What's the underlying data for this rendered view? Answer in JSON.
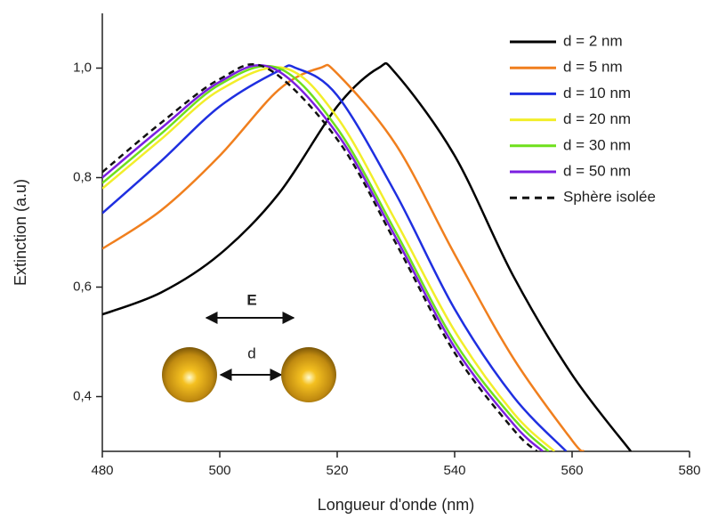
{
  "chart_data": {
    "type": "line",
    "x_label": "Longueur d'onde (nm)",
    "y_label": "Extinction (a.u)",
    "xlim": [
      480,
      580
    ],
    "ylim": [
      0.3,
      1.1
    ],
    "xticks": [
      480,
      500,
      520,
      540,
      560,
      580
    ],
    "yticks": [
      {
        "value": 0.4,
        "label": "0,4"
      },
      {
        "value": 0.6,
        "label": "0,6"
      },
      {
        "value": 0.8,
        "label": "0,8"
      },
      {
        "value": 1.0,
        "label": "1,0"
      }
    ],
    "legend": "upper right",
    "annotations": [
      "E",
      "d"
    ],
    "series": [
      {
        "name": "d = 2 nm",
        "color": "#000000",
        "dash": false,
        "x": [
          480,
          490,
          500,
          510,
          520,
          527,
          530,
          540,
          550,
          560,
          570
        ],
        "values": [
          0.55,
          0.59,
          0.66,
          0.77,
          0.93,
          1.0,
          0.99,
          0.84,
          0.62,
          0.44,
          0.3
        ]
      },
      {
        "name": "d = 5 nm",
        "color": "#f07f1e",
        "dash": false,
        "x": [
          480,
          490,
          500,
          510,
          517,
          520,
          530,
          540,
          550,
          560,
          562
        ],
        "values": [
          0.67,
          0.74,
          0.84,
          0.96,
          1.0,
          0.99,
          0.86,
          0.66,
          0.47,
          0.32,
          0.3
        ]
      },
      {
        "name": "d = 10 nm",
        "color": "#1f2fe0",
        "dash": false,
        "x": [
          480,
          490,
          500,
          510,
          513,
          520,
          530,
          540,
          550,
          559
        ],
        "values": [
          0.735,
          0.83,
          0.93,
          0.995,
          1.0,
          0.95,
          0.77,
          0.56,
          0.4,
          0.3
        ]
      },
      {
        "name": "d = 20 nm",
        "color": "#f2ee2a",
        "dash": false,
        "x": [
          480,
          490,
          500,
          511,
          520,
          530,
          540,
          550,
          557
        ],
        "values": [
          0.78,
          0.87,
          0.96,
          1.0,
          0.91,
          0.72,
          0.52,
          0.37,
          0.3
        ]
      },
      {
        "name": "d = 30 nm",
        "color": "#6fe01c",
        "dash": false,
        "x": [
          480,
          490,
          500,
          510,
          520,
          530,
          540,
          550,
          556
        ],
        "values": [
          0.79,
          0.88,
          0.97,
          1.0,
          0.89,
          0.7,
          0.5,
          0.36,
          0.3
        ]
      },
      {
        "name": "d = 50 nm",
        "color": "#7b1fe0",
        "dash": false,
        "x": [
          480,
          490,
          500,
          509,
          520,
          530,
          540,
          550,
          555
        ],
        "values": [
          0.8,
          0.89,
          0.975,
          1.0,
          0.88,
          0.69,
          0.49,
          0.35,
          0.3
        ]
      },
      {
        "name": "Sphère isolée",
        "color": "#111111",
        "dash": true,
        "x": [
          480,
          490,
          500,
          508,
          520,
          530,
          540,
          550,
          554
        ],
        "values": [
          0.81,
          0.9,
          0.98,
          1.0,
          0.87,
          0.68,
          0.48,
          0.34,
          0.3
        ]
      }
    ]
  }
}
